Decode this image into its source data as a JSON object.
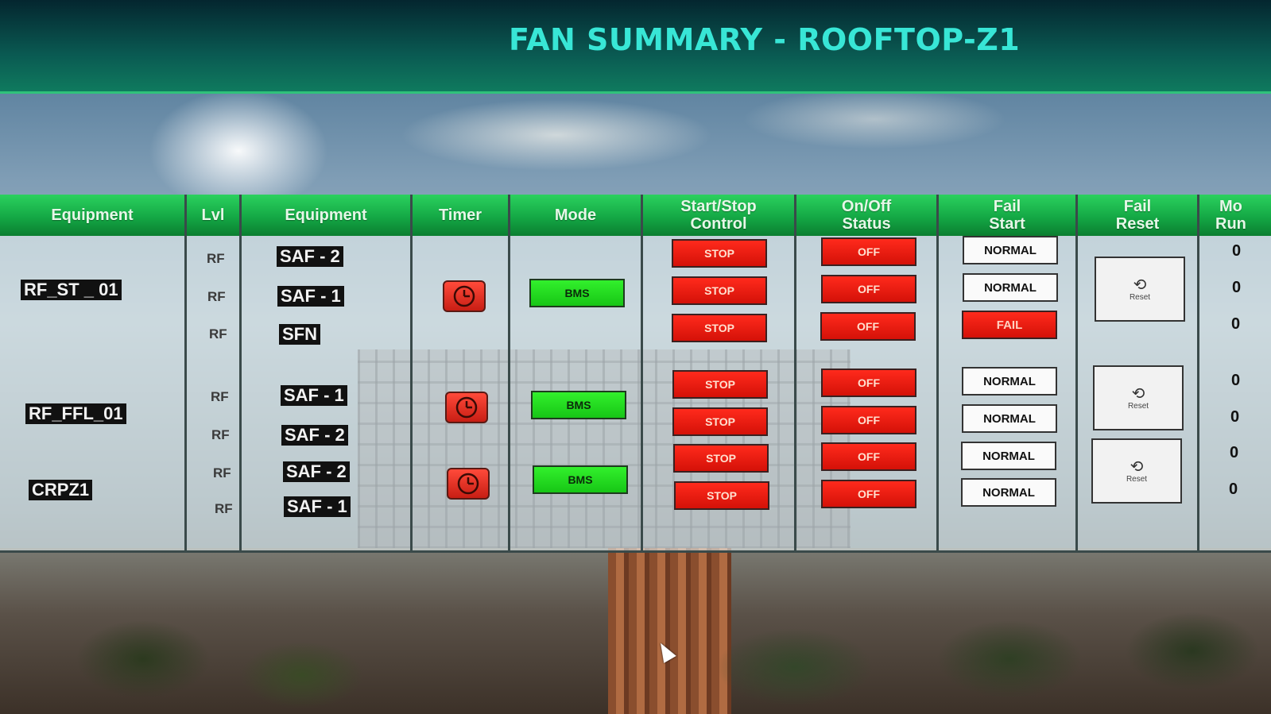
{
  "header": {
    "title": "FAN SUMMARY - ROOFTOP-Z1"
  },
  "columns": {
    "equipment_group": "Equipment",
    "lvl": "Lvl",
    "equipment": "Equipment",
    "timer": "Timer",
    "mode": "Mode",
    "start_stop": "Start/Stop\nControl",
    "on_off": "On/Off\nStatus",
    "fail_start": "Fail\nStart",
    "fail_reset": "Fail\nReset",
    "more_run": "Mo\nRun"
  },
  "groups": [
    {
      "name": "RF_ST _ 01",
      "mode": "BMS",
      "timer_icon": "clock-icon",
      "reset_label": "Reset"
    },
    {
      "name": "RF_FFL_01",
      "mode": "BMS",
      "timer_icon": "clock-icon",
      "reset_label": "Reset"
    },
    {
      "name": "CRPZ1",
      "mode": "BMS",
      "timer_icon": "clock-icon",
      "reset_label": "Reset"
    }
  ],
  "rows": [
    {
      "lvl": "RF",
      "equipment": "SAF - 2",
      "start_stop": "STOP",
      "status": "OFF",
      "fail_start": "NORMAL",
      "run": "0"
    },
    {
      "lvl": "RF",
      "equipment": "SAF - 1",
      "start_stop": "STOP",
      "status": "OFF",
      "fail_start": "NORMAL",
      "run": "0"
    },
    {
      "lvl": "RF",
      "equipment": "SFN",
      "start_stop": "STOP",
      "status": "OFF",
      "fail_start": "FAIL",
      "run": "0"
    },
    {
      "lvl": "RF",
      "equipment": "SAF - 1",
      "start_stop": "STOP",
      "status": "OFF",
      "fail_start": "NORMAL",
      "run": "0"
    },
    {
      "lvl": "RF",
      "equipment": "SAF - 2",
      "start_stop": "STOP",
      "status": "OFF",
      "fail_start": "NORMAL",
      "run": "0"
    },
    {
      "lvl": "RF",
      "equipment": "SAF - 2",
      "start_stop": "STOP",
      "status": "OFF",
      "fail_start": "NORMAL",
      "run": "0"
    },
    {
      "lvl": "RF",
      "equipment": "SAF - 1",
      "start_stop": "STOP",
      "status": "OFF",
      "fail_start": "NORMAL",
      "run": "0"
    }
  ],
  "colors": {
    "header_title": "#38e6d6",
    "table_header": "#14a845",
    "stop_red": "#d41108",
    "bms_green": "#17c616"
  }
}
